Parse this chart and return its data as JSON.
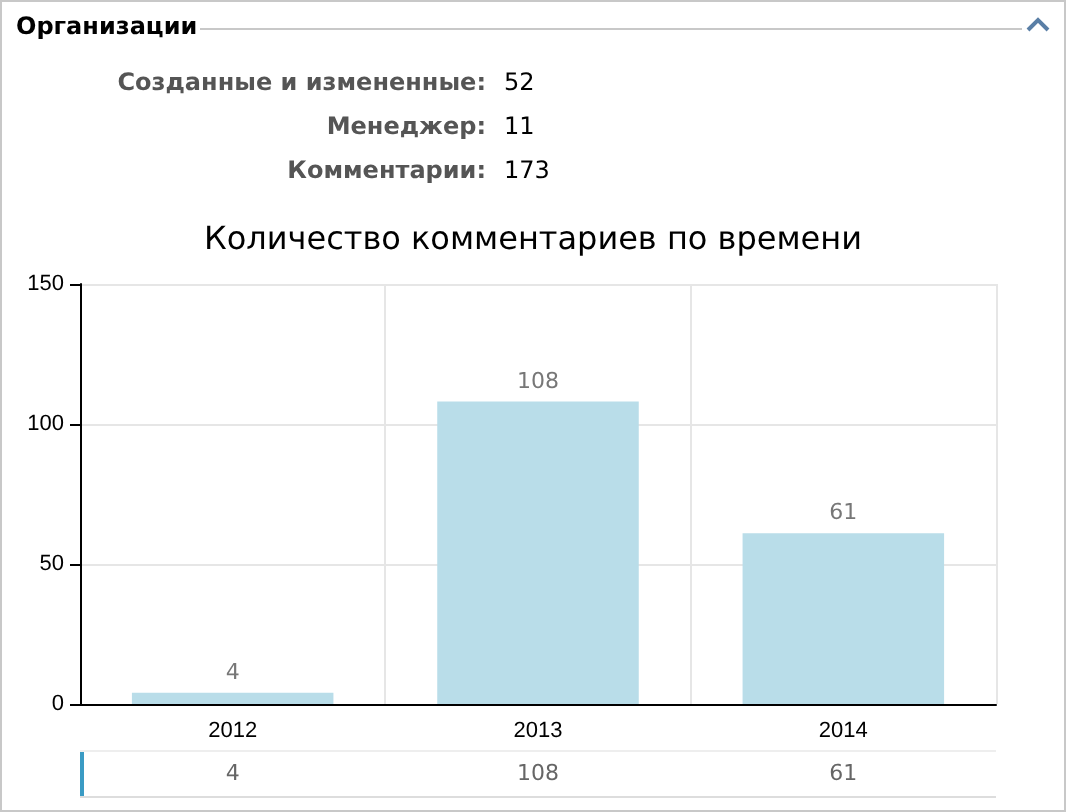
{
  "chart_data": {
    "type": "bar",
    "title": "Количество комментариев по времени",
    "annotations": [
      "Организации",
      "Созданные и измененные: 52",
      "Менеджер: 11",
      "Комментарии: 173"
    ],
    "categories": [
      "2012",
      "2013",
      "2014"
    ],
    "values": [
      4,
      108,
      61
    ],
    "color": "#b9dde9",
    "value_labels": [
      "4",
      "108",
      "61"
    ],
    "ylim": [
      0,
      150
    ],
    "yticks": [
      0,
      50,
      100,
      150
    ],
    "grid": true
  }
}
